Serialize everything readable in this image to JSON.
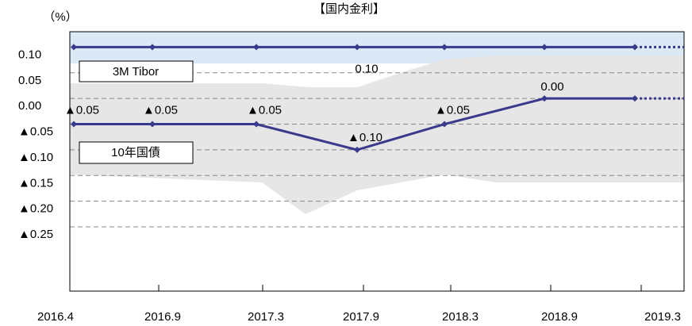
{
  "chart_data": {
    "type": "line",
    "title": "【国内金利】",
    "y_label": "（%）",
    "categories": [
      "2016.4",
      "2016.9",
      "2017.3",
      "2017.9",
      "2018.3",
      "2018.9",
      "2019.3"
    ],
    "ylim": [
      -0.375,
      0.13
    ],
    "yticks": [
      {
        "value": 0.1,
        "label": "0.10"
      },
      {
        "value": 0.05,
        "label": "0.05"
      },
      {
        "value": 0,
        "label": "0.00"
      },
      {
        "value": -0.05,
        "label": "▲0.05"
      },
      {
        "value": -0.1,
        "label": "▲0.10"
      },
      {
        "value": -0.15,
        "label": "▲0.15"
      },
      {
        "value": -0.2,
        "label": "▲0.20"
      },
      {
        "value": -0.25,
        "label": "▲0.25"
      }
    ],
    "grid": true,
    "series": [
      {
        "name": "3M Tibor",
        "color": "#3a3a8c",
        "values": [
          0.1,
          0.1,
          0.1,
          0.1,
          0.1,
          0.1,
          0.1
        ],
        "value_labels": [
          null,
          null,
          null,
          "0.10",
          null,
          null,
          null
        ]
      },
      {
        "name": "10年国債",
        "color": "#3a3a8c",
        "values": [
          -0.05,
          -0.05,
          -0.05,
          -0.1,
          -0.05,
          0,
          0
        ],
        "value_labels": [
          "▲0.05",
          "▲0.05",
          "▲0.05",
          "▲0.10",
          "▲0.05",
          "0.00",
          null
        ]
      }
    ]
  }
}
